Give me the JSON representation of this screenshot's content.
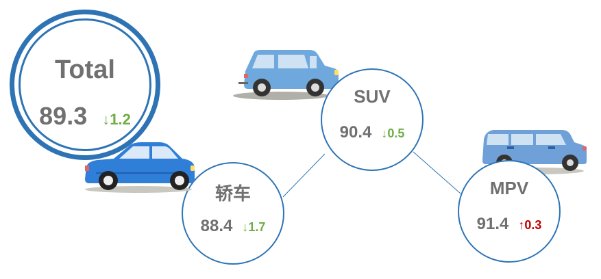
{
  "nodes": {
    "total": {
      "title": "Total",
      "value": "89.3",
      "arrow": "↓",
      "delta": "1.2"
    },
    "sedan": {
      "title": "轿车",
      "value": "88.4",
      "arrow": "↓",
      "delta": "1.7"
    },
    "suv": {
      "title": "SUV",
      "value": "90.4",
      "arrow": "↓",
      "delta": "0.5"
    },
    "mpv": {
      "title": "MPV",
      "value": "91.4",
      "arrow": "↑",
      "delta": "0.3"
    }
  },
  "icons": [
    "sedan-car-icon",
    "suv-car-icon",
    "mpv-van-icon"
  ],
  "colors": {
    "ring": "#2e74b5",
    "text": "#707070",
    "decrease": "#70ad47",
    "increase": "#c00000",
    "sedan_body": "#2f7ed8",
    "suv_body": "#6fa8dc",
    "mpv_body": "#6fa0d8"
  }
}
